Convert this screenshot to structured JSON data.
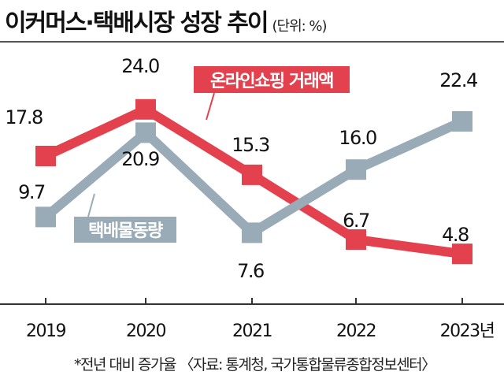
{
  "title": "이커머스·택배시장 성장 추이",
  "unit": "(단위: %)",
  "footnote": "*전년 대비 증가율 〈자료: 통계청, 국가통합물류종합정보센터〉",
  "colors": {
    "online": "#e4414f",
    "parcel": "#98abb6",
    "axis": "#333333"
  },
  "chart_data": {
    "type": "line",
    "categories": [
      "2019",
      "2020",
      "2021",
      "2022",
      "2023년"
    ],
    "series": [
      {
        "name": "온라인쇼핑 거래액",
        "values": [
          17.8,
          24.0,
          15.3,
          6.7,
          4.8
        ]
      },
      {
        "name": "택배물동량",
        "values": [
          9.7,
          20.9,
          7.6,
          16.0,
          22.4
        ]
      }
    ],
    "labels": {
      "online": [
        "17.8",
        "24.0",
        "15.3",
        "6.7",
        "4.8"
      ],
      "parcel": [
        "9.7",
        "20.9",
        "7.6",
        "16.0",
        "22.4"
      ]
    },
    "grid": false,
    "legend": "inline"
  }
}
